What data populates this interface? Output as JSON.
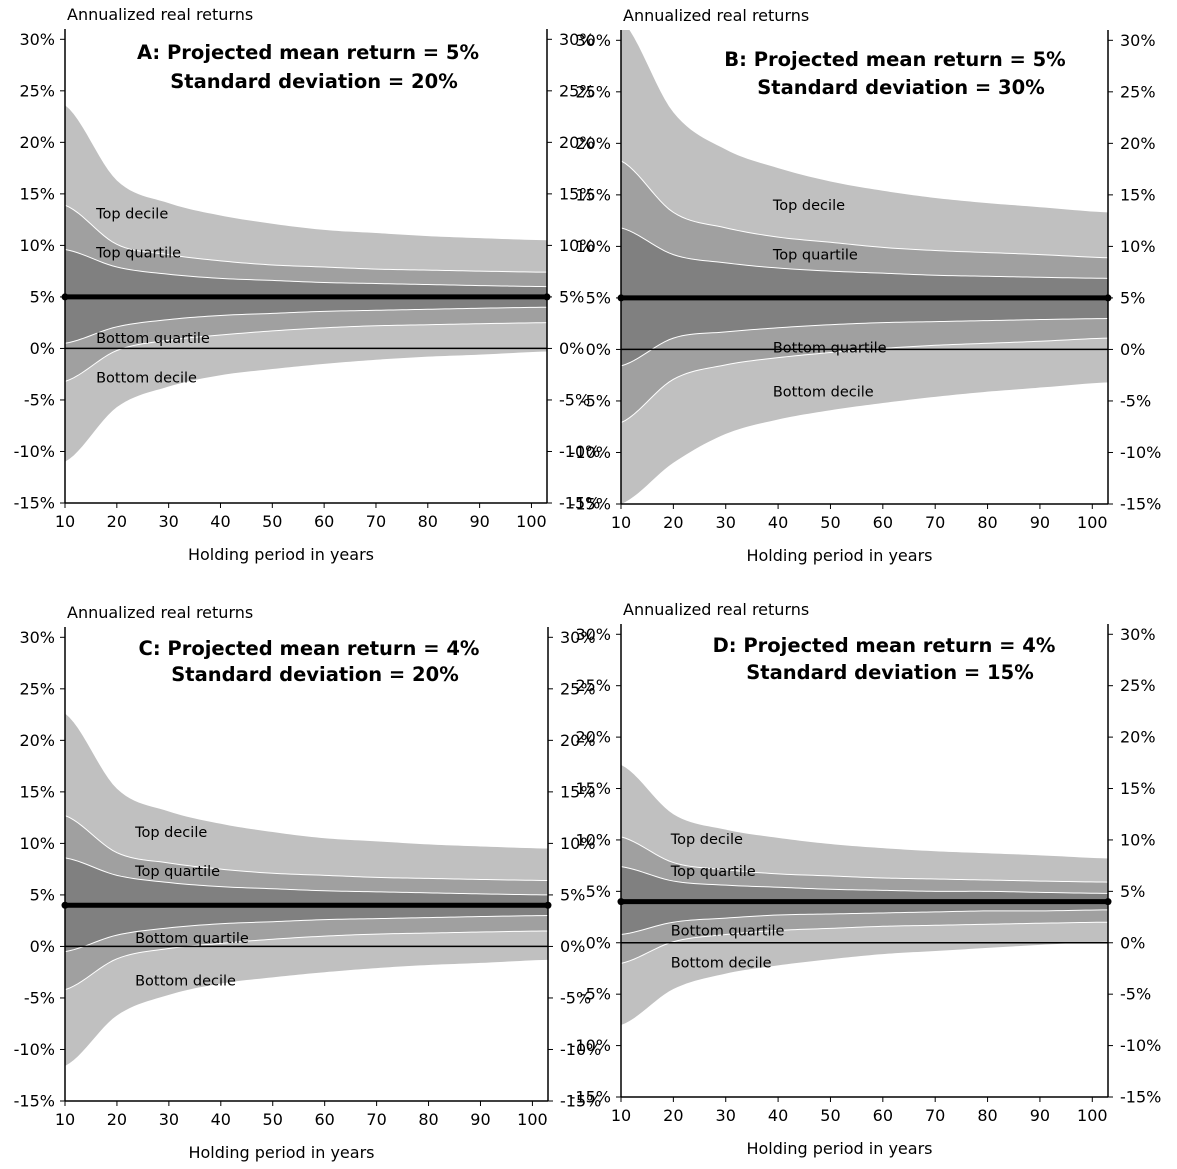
{
  "colors": {
    "decile_band": "#c0c0c0",
    "quartile_band": "#a0a0a0",
    "inner_band": "#808080",
    "mean_line": "#000000",
    "boundary": "#ffffff"
  },
  "chart_data": [
    {
      "type": "area",
      "title": "A: Projected mean return = 5%",
      "subtitle": "Standard deviation = 20%",
      "ylabel": "Annualized real returns",
      "xlabel": "Holding period in years",
      "xlim": [
        10,
        103
      ],
      "ylim": [
        -15,
        31
      ],
      "x_ticks": [
        10,
        20,
        30,
        40,
        50,
        60,
        70,
        80,
        90,
        100
      ],
      "y_ticks": [
        -15,
        -10,
        -5,
        0,
        5,
        10,
        15,
        20,
        25,
        30
      ],
      "y_tick_labels": [
        "-15%",
        "-10%",
        "-5%",
        "0%",
        "5%",
        "10%",
        "15%",
        "20%",
        "25%",
        "30%"
      ],
      "mean": 5,
      "x": [
        10,
        20,
        30,
        40,
        50,
        60,
        70,
        80,
        90,
        103
      ],
      "series": [
        {
          "name": "Top decile",
          "values": [
            23.6,
            16.3,
            14.1,
            12.9,
            12.1,
            11.5,
            11.2,
            10.9,
            10.7,
            10.5
          ]
        },
        {
          "name": "Top quartile",
          "values": [
            13.9,
            10.1,
            9.1,
            8.5,
            8.1,
            7.9,
            7.7,
            7.6,
            7.5,
            7.4
          ]
        },
        {
          "name": "",
          "values": [
            9.6,
            7.9,
            7.2,
            6.8,
            6.6,
            6.4,
            6.3,
            6.2,
            6.1,
            6.0
          ]
        },
        {
          "name": "",
          "values": [
            0.5,
            2.1,
            2.8,
            3.2,
            3.4,
            3.6,
            3.7,
            3.8,
            3.9,
            4.0
          ]
        },
        {
          "name": "Bottom quartile",
          "values": [
            -3.2,
            -0.2,
            0.8,
            1.3,
            1.7,
            2.0,
            2.2,
            2.3,
            2.4,
            2.5
          ]
        },
        {
          "name": "Bottom decile",
          "values": [
            -11.0,
            -5.7,
            -3.7,
            -2.6,
            -2.0,
            -1.5,
            -1.1,
            -0.8,
            -0.6,
            -0.3
          ]
        }
      ],
      "labels": [
        {
          "text": "Top decile",
          "x": 16,
          "y": 13.1
        },
        {
          "text": "Top quartile",
          "x": 16,
          "y": 9.3
        },
        {
          "text": "Bottom quartile",
          "x": 16,
          "y": 1.0
        },
        {
          "text": "Bottom decile",
          "x": 16,
          "y": -2.8
        }
      ]
    },
    {
      "type": "area",
      "title": "B: Projected mean return = 5%",
      "subtitle": "Standard deviation = 30%",
      "ylabel": "Annualized real returns",
      "xlabel": "Holding period in years",
      "xlim": [
        10,
        103
      ],
      "ylim": [
        -15,
        31
      ],
      "x_ticks": [
        10,
        20,
        30,
        40,
        50,
        60,
        70,
        80,
        90,
        100
      ],
      "y_ticks": [
        -15,
        -10,
        -5,
        0,
        5,
        10,
        15,
        20,
        25,
        30
      ],
      "y_tick_labels": [
        "-15%",
        "-10%",
        "-5%",
        "0%",
        "5%",
        "10%",
        "15%",
        "20%",
        "25%",
        "30%"
      ],
      "mean": 5,
      "x": [
        10,
        20,
        30,
        40,
        50,
        60,
        70,
        80,
        90,
        103
      ],
      "series": [
        {
          "name": "Top decile",
          "values": [
            32.0,
            23.0,
            19.4,
            17.6,
            16.3,
            15.4,
            14.7,
            14.2,
            13.8,
            13.3
          ]
        },
        {
          "name": "Top quartile",
          "values": [
            18.3,
            13.3,
            11.8,
            10.9,
            10.4,
            9.9,
            9.6,
            9.4,
            9.2,
            8.9
          ]
        },
        {
          "name": "",
          "values": [
            11.8,
            9.2,
            8.4,
            7.9,
            7.6,
            7.4,
            7.2,
            7.1,
            7.0,
            6.9
          ]
        },
        {
          "name": "",
          "values": [
            -1.6,
            1.1,
            1.7,
            2.1,
            2.4,
            2.6,
            2.7,
            2.8,
            2.9,
            3.0
          ]
        },
        {
          "name": "Bottom quartile",
          "values": [
            -7.1,
            -2.9,
            -1.5,
            -0.8,
            -0.3,
            0.1,
            0.4,
            0.6,
            0.8,
            1.1
          ]
        },
        {
          "name": "Bottom decile",
          "values": [
            -15.0,
            -11.0,
            -8.2,
            -6.8,
            -5.9,
            -5.2,
            -4.6,
            -4.1,
            -3.7,
            -3.2
          ]
        }
      ],
      "labels": [
        {
          "text": "Top decile",
          "x": 39,
          "y": 14.0
        },
        {
          "text": "Top quartile",
          "x": 39,
          "y": 9.2
        },
        {
          "text": "Bottom quartile",
          "x": 39,
          "y": 0.2
        },
        {
          "text": "Bottom decile",
          "x": 39,
          "y": -4.1
        }
      ]
    },
    {
      "type": "area",
      "title": "C: Projected mean return = 4%",
      "subtitle": "Standard deviation = 20%",
      "ylabel": "Annualized real returns",
      "xlabel": "Holding period in years",
      "xlim": [
        10,
        103
      ],
      "ylim": [
        -15,
        31
      ],
      "x_ticks": [
        10,
        20,
        30,
        40,
        50,
        60,
        70,
        80,
        90,
        100
      ],
      "y_ticks": [
        -15,
        -10,
        -5,
        0,
        5,
        10,
        15,
        20,
        25,
        30
      ],
      "y_tick_labels": [
        "-15%",
        "-10%",
        "-5%",
        "0%",
        "5%",
        "10%",
        "15%",
        "20%",
        "25%",
        "30%"
      ],
      "mean": 4,
      "x": [
        10,
        20,
        30,
        40,
        50,
        60,
        70,
        80,
        90,
        103
      ],
      "series": [
        {
          "name": "Top decile",
          "values": [
            22.6,
            15.3,
            13.1,
            11.9,
            11.1,
            10.5,
            10.2,
            9.9,
            9.7,
            9.5
          ]
        },
        {
          "name": "Top quartile",
          "values": [
            12.7,
            9.1,
            8.1,
            7.5,
            7.1,
            6.9,
            6.7,
            6.6,
            6.5,
            6.4
          ]
        },
        {
          "name": "",
          "values": [
            8.6,
            6.9,
            6.2,
            5.8,
            5.6,
            5.4,
            5.3,
            5.2,
            5.1,
            5.0
          ]
        },
        {
          "name": "",
          "values": [
            -0.5,
            1.1,
            1.8,
            2.2,
            2.4,
            2.6,
            2.7,
            2.8,
            2.9,
            3.0
          ]
        },
        {
          "name": "Bottom quartile",
          "values": [
            -4.2,
            -1.2,
            -0.2,
            0.3,
            0.7,
            1.0,
            1.2,
            1.3,
            1.4,
            1.5
          ]
        },
        {
          "name": "Bottom decile",
          "values": [
            -11.6,
            -6.7,
            -4.7,
            -3.6,
            -3.0,
            -2.5,
            -2.1,
            -1.8,
            -1.6,
            -1.3
          ]
        }
      ],
      "labels": [
        {
          "text": "Top decile",
          "x": 23.5,
          "y": 11.1
        },
        {
          "text": "Top quartile",
          "x": 23.5,
          "y": 7.3
        },
        {
          "text": "Bottom quartile",
          "x": 23.5,
          "y": 0.8
        },
        {
          "text": "Bottom decile",
          "x": 23.5,
          "y": -3.3
        }
      ]
    },
    {
      "type": "area",
      "title": "D: Projected mean return = 4%",
      "subtitle": "Standard deviation = 15%",
      "ylabel": "Annualized real returns",
      "xlabel": "Holding period in years",
      "xlim": [
        10,
        103
      ],
      "ylim": [
        -15,
        31
      ],
      "x_ticks": [
        10,
        20,
        30,
        40,
        50,
        60,
        70,
        80,
        90,
        100
      ],
      "y_ticks": [
        -15,
        -10,
        -5,
        0,
        5,
        10,
        15,
        20,
        25,
        30
      ],
      "y_tick_labels": [
        "-15%",
        "-10%",
        "-5%",
        "0%",
        "5%",
        "10%",
        "15%",
        "20%",
        "25%",
        "30%"
      ],
      "mean": 4,
      "x": [
        10,
        20,
        30,
        40,
        50,
        60,
        70,
        80,
        90,
        103
      ],
      "series": [
        {
          "name": "Top decile",
          "values": [
            17.3,
            12.5,
            11.0,
            10.2,
            9.6,
            9.2,
            8.9,
            8.7,
            8.5,
            8.2
          ]
        },
        {
          "name": "Top quartile",
          "values": [
            10.3,
            7.8,
            7.1,
            6.7,
            6.5,
            6.3,
            6.2,
            6.1,
            6.0,
            5.9
          ]
        },
        {
          "name": "",
          "values": [
            7.4,
            6.0,
            5.6,
            5.4,
            5.2,
            5.1,
            5.0,
            5.0,
            4.9,
            4.8
          ]
        },
        {
          "name": "",
          "values": [
            0.8,
            2.0,
            2.4,
            2.7,
            2.8,
            2.9,
            3.0,
            3.1,
            3.1,
            3.2
          ]
        },
        {
          "name": "Bottom quartile",
          "values": [
            -2.0,
            0.1,
            0.8,
            1.2,
            1.4,
            1.6,
            1.7,
            1.8,
            1.9,
            2.0
          ]
        },
        {
          "name": "Bottom decile",
          "values": [
            -8.0,
            -4.5,
            -3.0,
            -2.2,
            -1.6,
            -1.1,
            -0.8,
            -0.5,
            -0.2,
            0.1
          ]
        }
      ],
      "labels": [
        {
          "text": "Top decile",
          "x": 19.5,
          "y": 10.1
        },
        {
          "text": "Top quartile",
          "x": 19.5,
          "y": 7.0
        },
        {
          "text": "Bottom quartile",
          "x": 19.5,
          "y": 1.2
        },
        {
          "text": "Bottom decile",
          "x": 19.5,
          "y": -1.9
        }
      ]
    }
  ]
}
